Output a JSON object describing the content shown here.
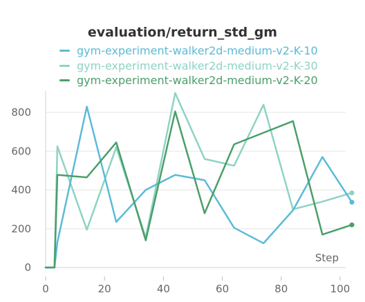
{
  "chart_data": {
    "type": "line",
    "title": "evaluation/return_std_gm",
    "xlabel": "Step",
    "ylabel": "",
    "xlim": [
      0,
      105
    ],
    "ylim": [
      0,
      900
    ],
    "x_ticks": [
      0,
      20,
      40,
      60,
      80,
      100
    ],
    "y_ticks": [
      0,
      200,
      400,
      600,
      800
    ],
    "grid": "horizontal",
    "legend_position": "top",
    "series": [
      {
        "name": "gym-experiment-walker2d-medium-v2-K-10",
        "color": "#5bbad6",
        "x": [
          0,
          3,
          4,
          14,
          24,
          34,
          44,
          54,
          64,
          74,
          84,
          94,
          104
        ],
        "y": [
          0,
          0,
          130,
          830,
          235,
          400,
          478,
          450,
          205,
          125,
          295,
          570,
          337
        ]
      },
      {
        "name": "gym-experiment-walker2d-medium-v2-K-30",
        "color": "#8dd3c3",
        "x": [
          0,
          3,
          4,
          14,
          24,
          34,
          44,
          54,
          64,
          74,
          84,
          94,
          104
        ],
        "y": [
          0,
          0,
          625,
          195,
          620,
          155,
          900,
          560,
          525,
          840,
          300,
          340,
          385
        ]
      },
      {
        "name": "gym-experiment-walker2d-medium-v2-K-20",
        "color": "#4a9e69",
        "x": [
          0,
          3,
          4,
          14,
          24,
          34,
          44,
          54,
          64,
          74,
          84,
          94,
          104
        ],
        "y": [
          0,
          0,
          478,
          465,
          645,
          140,
          805,
          280,
          635,
          695,
          755,
          170,
          220
        ]
      }
    ]
  }
}
